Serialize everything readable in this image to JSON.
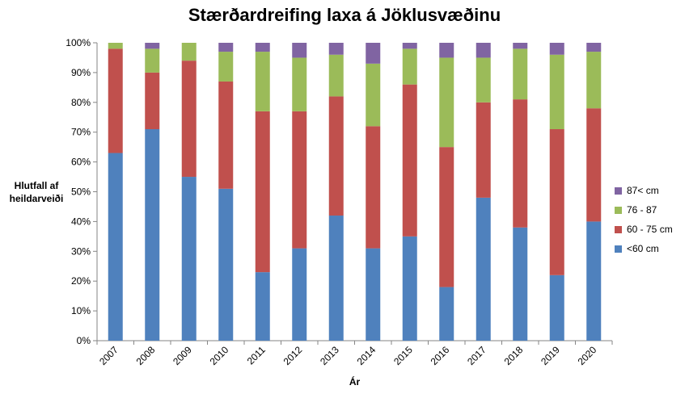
{
  "chart_data": {
    "type": "bar",
    "stacked": true,
    "percent": true,
    "title": "Stærðardreifing laxa á Jöklusvæðinu",
    "ylabel": [
      "Hlutfall af",
      "heildarveiði"
    ],
    "xlabel": "Ár",
    "ylim": [
      0,
      100
    ],
    "yticks": [
      "0%",
      "10%",
      "20%",
      "30%",
      "40%",
      "50%",
      "60%",
      "70%",
      "80%",
      "90%",
      "100%"
    ],
    "categories": [
      "2007",
      "2008",
      "2009",
      "2010",
      "2011",
      "2012",
      "2013",
      "2014",
      "2015",
      "2016",
      "2017",
      "2018",
      "2019",
      "2020"
    ],
    "series": [
      {
        "name": "<60 cm",
        "color": "#4f81bd",
        "values": [
          63,
          71,
          55,
          51,
          23,
          31,
          42,
          31,
          35,
          18,
          48,
          38,
          22,
          40
        ]
      },
      {
        "name": "60 - 75 cm",
        "color": "#c0504d",
        "values": [
          35,
          19,
          39,
          36,
          54,
          46,
          40,
          41,
          51,
          47,
          32,
          43,
          49,
          38
        ]
      },
      {
        "name": "76 - 87",
        "color": "#9bbb59",
        "values": [
          2,
          8,
          6,
          10,
          20,
          18,
          14,
          21,
          12,
          30,
          15,
          17,
          25,
          19
        ]
      },
      {
        "name": "87< cm",
        "color": "#8064a2",
        "values": [
          0,
          2,
          0,
          3,
          3,
          5,
          4,
          7,
          2,
          5,
          5,
          2,
          4,
          3
        ]
      }
    ],
    "legend_position": "right",
    "grid": false
  }
}
